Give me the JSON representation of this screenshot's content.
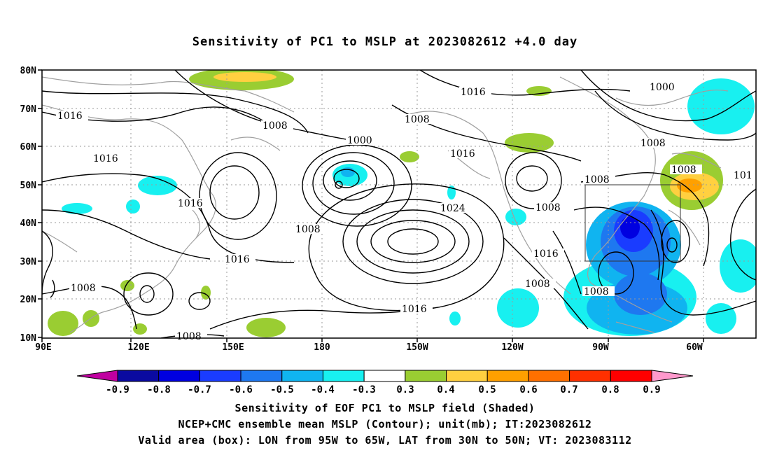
{
  "title": "Sensitivity of PC1 to MSLP at 2023082612 +4.0 day",
  "lat_labels": [
    "80N",
    "70N",
    "60N",
    "50N",
    "40N",
    "30N",
    "20N",
    "10N"
  ],
  "lon_labels": [
    "90E",
    "120E",
    "150E",
    "180",
    "150W",
    "120W",
    "90W",
    "60W"
  ],
  "contour_labels": [
    "1016",
    "1016",
    "1008",
    "1008",
    "1000",
    "1016",
    "1000",
    "1008",
    "1016",
    "1016",
    "1008",
    "1008",
    "1024",
    "1016",
    "1008",
    "1016",
    "1008",
    "1008",
    "1016",
    "1008",
    "1008",
    "101",
    "1008"
  ],
  "colorbar": {
    "labels": [
      "-0.9",
      "-0.8",
      "-0.7",
      "-0.6",
      "-0.5",
      "-0.4",
      "-0.3",
      "0.3",
      "0.4",
      "0.5",
      "0.6",
      "0.7",
      "0.8",
      "0.9"
    ],
    "colors": [
      "#c000a0",
      "#0a0aa0",
      "#0000e0",
      "#1a3cff",
      "#1e78f0",
      "#10b4f0",
      "#18f0f0",
      "#ffffff",
      "#9acd32",
      "#ffd040",
      "#ffa000",
      "#ff7000",
      "#ff3000",
      "#ff0000",
      "#ff99cc"
    ]
  },
  "shading_colors": {
    "green": "#9acd32",
    "yellow": "#ffd040",
    "orange": "#ffa000",
    "cyan": "#18f0f0",
    "sky": "#10b4f0",
    "blue": "#1e78f0",
    "deep": "#1a3cff",
    "navy": "#0000e0"
  },
  "captions": [
    "Sensitivity of EOF PC1 to MSLP field (Shaded)",
    "NCEP+CMC ensemble mean MSLP (Contour); unit(mb); IT:2023082612",
    "Valid area (box): LON from 95W to 65W, LAT from 30N to 50N; VT: 2023083112"
  ]
}
